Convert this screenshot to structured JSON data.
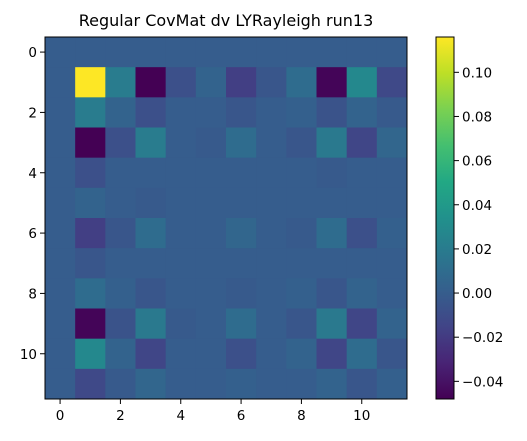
{
  "chart_data": {
    "type": "heatmap",
    "title": "Regular CovMat dv LYRayleigh run13",
    "xlabel": "",
    "ylabel": "",
    "colormap": "viridis",
    "value_range": [
      -0.048,
      0.116
    ],
    "x_ticks": [
      "0",
      "2",
      "4",
      "6",
      "8",
      "10"
    ],
    "y_ticks": [
      "0",
      "2",
      "4",
      "6",
      "8",
      "10"
    ],
    "colorbar_ticks": [
      "0.10",
      "0.08",
      "0.06",
      "0.04",
      "0.02",
      "0.00",
      "−0.02",
      "−0.04"
    ],
    "colorbar_tick_values": [
      0.1,
      0.08,
      0.06,
      0.04,
      0.02,
      0.0,
      -0.02,
      -0.04
    ],
    "rows": 12,
    "cols": 12,
    "matrix": [
      [
        0,
        0,
        0,
        0,
        0,
        0,
        0,
        0,
        0,
        0,
        0,
        0
      ],
      [
        0,
        0.116,
        0.02,
        -0.048,
        -0.008,
        0.004,
        -0.018,
        -0.004,
        0.01,
        -0.046,
        0.028,
        -0.012
      ],
      [
        0,
        0.02,
        0.004,
        -0.008,
        0.0,
        0.0,
        -0.004,
        0.0,
        0.002,
        -0.006,
        0.004,
        -0.002
      ],
      [
        0,
        -0.048,
        -0.008,
        0.02,
        0.0,
        -0.002,
        0.01,
        0.0,
        -0.004,
        0.018,
        -0.014,
        0.006
      ],
      [
        0,
        -0.008,
        0.0,
        0.0,
        0.0,
        0.0,
        0.0,
        0.0,
        0.0,
        -0.002,
        0.0,
        0.0
      ],
      [
        0,
        0.004,
        0.0,
        -0.002,
        0.0,
        0.0,
        0.0,
        0.0,
        0.0,
        0.0,
        0.0,
        0.0
      ],
      [
        0,
        -0.018,
        -0.004,
        0.01,
        0.0,
        0.0,
        0.006,
        0.0,
        -0.002,
        0.01,
        -0.008,
        0.002
      ],
      [
        0,
        -0.004,
        0.0,
        0.0,
        0.0,
        0.0,
        0.0,
        0.0,
        0.0,
        0.0,
        0.0,
        0.0
      ],
      [
        0,
        0.01,
        0.002,
        -0.004,
        0.0,
        0.0,
        -0.002,
        0.0,
        0.002,
        -0.004,
        0.004,
        0.0
      ],
      [
        0,
        -0.046,
        -0.006,
        0.018,
        -0.002,
        0.0,
        0.01,
        0.0,
        -0.004,
        0.018,
        -0.014,
        0.004
      ],
      [
        0,
        0.028,
        0.004,
        -0.014,
        0.0,
        0.0,
        -0.008,
        0.0,
        0.004,
        -0.014,
        0.01,
        -0.004
      ],
      [
        0,
        -0.012,
        -0.002,
        0.006,
        0.0,
        0.0,
        0.002,
        0.0,
        0.0,
        0.004,
        -0.004,
        0.002
      ]
    ]
  }
}
